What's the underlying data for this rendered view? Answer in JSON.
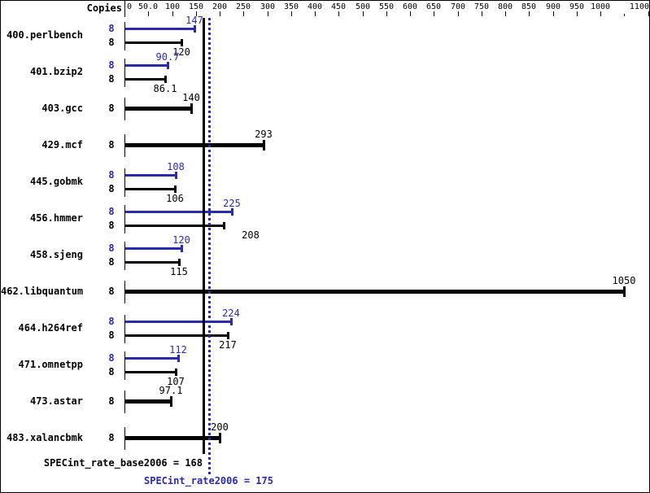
{
  "chart_data": {
    "type": "bar",
    "orientation": "horizontal",
    "copies_header": "Copies",
    "colors": {
      "peak": "#2a2aad",
      "base": "#000000"
    },
    "x_axis": {
      "min": 0,
      "max": 1136,
      "grid": false,
      "ticks": [
        {
          "value": 0,
          "label": "0",
          "align": "left"
        },
        {
          "value": 50,
          "label": "50.0"
        },
        {
          "value": 100,
          "label": "100"
        },
        {
          "value": 150,
          "label": "150"
        },
        {
          "value": 200,
          "label": "200"
        },
        {
          "value": 250,
          "label": "250"
        },
        {
          "value": 300,
          "label": "300"
        },
        {
          "value": 350,
          "label": "350"
        },
        {
          "value": 400,
          "label": "400"
        },
        {
          "value": 450,
          "label": "450"
        },
        {
          "value": 500,
          "label": "500"
        },
        {
          "value": 550,
          "label": "550"
        },
        {
          "value": 600,
          "label": "600"
        },
        {
          "value": 650,
          "label": "650"
        },
        {
          "value": 700,
          "label": "700"
        },
        {
          "value": 750,
          "label": "750"
        },
        {
          "value": 800,
          "label": "800"
        },
        {
          "value": 850,
          "label": "850"
        },
        {
          "value": 900,
          "label": "900"
        },
        {
          "value": 950,
          "label": "950"
        },
        {
          "value": 1000,
          "label": "1000"
        },
        {
          "value": 1050,
          "label": ""
        },
        {
          "value": 1100,
          "label": "1100",
          "align": "right"
        }
      ]
    },
    "benchmarks": [
      {
        "name": "400.perlbench",
        "copies": "8",
        "peak": 147,
        "peak_label": "147",
        "base": 120,
        "base_label": "120"
      },
      {
        "name": "401.bzip2",
        "copies": "8",
        "peak": 90.7,
        "peak_label": "90.7",
        "base": 86.1,
        "base_label": "86.1"
      },
      {
        "name": "403.gcc",
        "copies": "8",
        "base": 140,
        "base_label": "140"
      },
      {
        "name": "429.mcf",
        "copies": "8",
        "base": 293,
        "base_label": "293"
      },
      {
        "name": "445.gobmk",
        "copies": "8",
        "peak": 108,
        "peak_label": "108",
        "base": 106,
        "base_label": "106"
      },
      {
        "name": "456.hmmer",
        "copies": "8",
        "peak": 225,
        "peak_label": "225",
        "base": 208,
        "base_label": "208",
        "base_label_dx": 33
      },
      {
        "name": "458.sjeng",
        "copies": "8",
        "peak": 120,
        "peak_label": "120",
        "base": 115,
        "base_label": "115"
      },
      {
        "name": "462.libquantum",
        "copies": "8",
        "base": 1050,
        "base_label": "1050"
      },
      {
        "name": "464.h264ref",
        "copies": "8",
        "peak": 224,
        "peak_label": "224",
        "base": 217,
        "base_label": "217"
      },
      {
        "name": "471.omnetpp",
        "copies": "8",
        "peak": 112,
        "peak_label": "112",
        "base": 107,
        "base_label": "107"
      },
      {
        "name": "473.astar",
        "copies": "8",
        "base": 97.1,
        "base_label": "97.1"
      },
      {
        "name": "483.xalancbmk",
        "copies": "8",
        "base": 200,
        "base_label": "200"
      }
    ],
    "reference_lines": [
      {
        "name": "base",
        "value": 168,
        "style": "solid",
        "color": "#000000"
      },
      {
        "name": "peak",
        "value": 175,
        "style": "dotted",
        "color": "#2a2aad"
      }
    ],
    "summary": {
      "base": {
        "text": "SPECint_rate_base2006 = 168",
        "value": 168,
        "color": "#000000"
      },
      "peak": {
        "text": "SPECint_rate2006 = 175",
        "value": 175,
        "color": "#2a2aad"
      }
    }
  }
}
